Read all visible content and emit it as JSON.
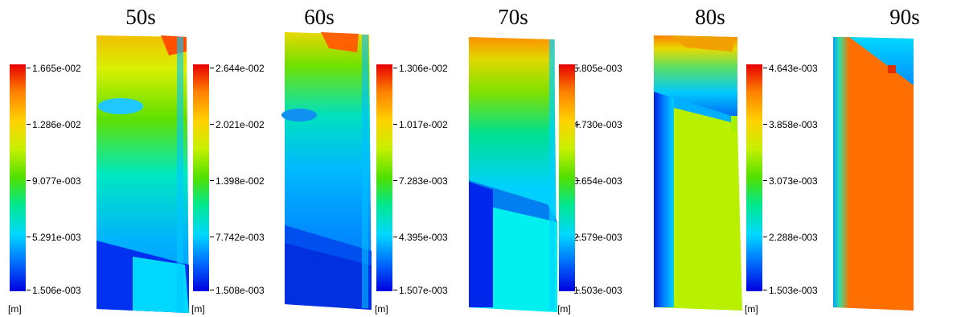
{
  "panels": [
    {
      "time": "50s",
      "legend": {
        "labels": [
          "1.665e-002",
          "1.286e-002",
          "9.077e-003",
          "5.291e-003",
          "1.506e-003"
        ],
        "unit": "[m]"
      }
    },
    {
      "time": "60s",
      "legend": {
        "labels": [
          "2.644e-002",
          "2.021e-002",
          "1.398e-002",
          "7.742e-003",
          "1.508e-003"
        ],
        "unit": "[m]"
      }
    },
    {
      "time": "70s",
      "legend": {
        "labels": [
          "1.306e-002",
          "1.017e-002",
          "7.283e-003",
          "4.395e-003",
          "1.507e-003"
        ],
        "unit": "[m]"
      }
    },
    {
      "time": "80s",
      "legend": {
        "labels": [
          "5.805e-003",
          "4.730e-003",
          "3.654e-003",
          "2.579e-003",
          "1.503e-003"
        ],
        "unit": "[m]"
      }
    },
    {
      "time": "90s",
      "legend": {
        "labels": [
          "4.643e-003",
          "3.858e-003",
          "3.073e-003",
          "2.288e-003",
          "1.503e-003"
        ],
        "unit": "[m]"
      }
    }
  ]
}
